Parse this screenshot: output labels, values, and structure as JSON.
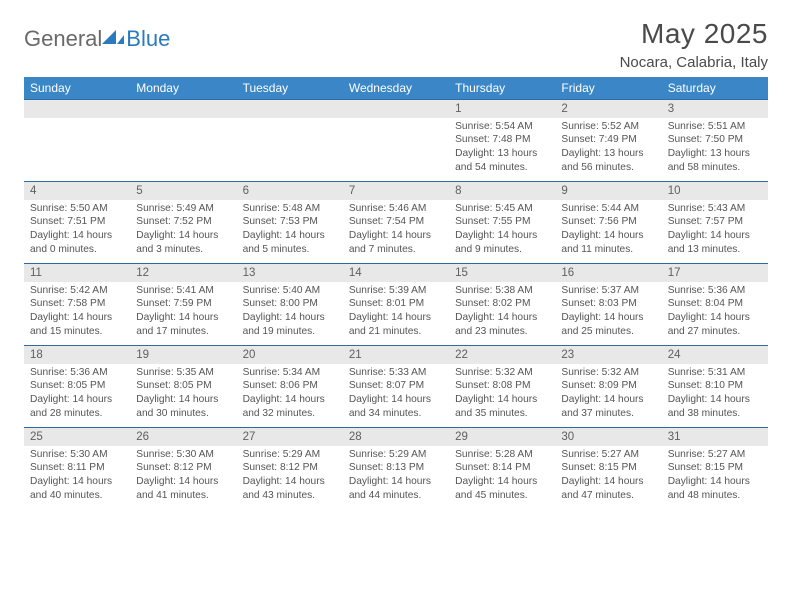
{
  "brand": {
    "part1": "General",
    "part2": "Blue"
  },
  "title": "May 2025",
  "location": "Nocara, Calabria, Italy",
  "colors": {
    "header_bg": "#3b86c7",
    "header_text": "#ffffff",
    "daynum_bg": "#e8e8e8",
    "daynum_border": "#2f6aa3",
    "body_text": "#555555",
    "title_text": "#4a4a4a",
    "logo_gray": "#6a6a6a",
    "logo_blue": "#2a7ac0"
  },
  "weekdays": [
    "Sunday",
    "Monday",
    "Tuesday",
    "Wednesday",
    "Thursday",
    "Friday",
    "Saturday"
  ],
  "weeks": [
    {
      "nums": [
        "",
        "",
        "",
        "",
        "1",
        "2",
        "3"
      ],
      "cells": [
        {},
        {},
        {},
        {},
        {
          "sr": "Sunrise: 5:54 AM",
          "ss": "Sunset: 7:48 PM",
          "d1": "Daylight: 13 hours",
          "d2": "and 54 minutes."
        },
        {
          "sr": "Sunrise: 5:52 AM",
          "ss": "Sunset: 7:49 PM",
          "d1": "Daylight: 13 hours",
          "d2": "and 56 minutes."
        },
        {
          "sr": "Sunrise: 5:51 AM",
          "ss": "Sunset: 7:50 PM",
          "d1": "Daylight: 13 hours",
          "d2": "and 58 minutes."
        }
      ]
    },
    {
      "nums": [
        "4",
        "5",
        "6",
        "7",
        "8",
        "9",
        "10"
      ],
      "cells": [
        {
          "sr": "Sunrise: 5:50 AM",
          "ss": "Sunset: 7:51 PM",
          "d1": "Daylight: 14 hours",
          "d2": "and 0 minutes."
        },
        {
          "sr": "Sunrise: 5:49 AM",
          "ss": "Sunset: 7:52 PM",
          "d1": "Daylight: 14 hours",
          "d2": "and 3 minutes."
        },
        {
          "sr": "Sunrise: 5:48 AM",
          "ss": "Sunset: 7:53 PM",
          "d1": "Daylight: 14 hours",
          "d2": "and 5 minutes."
        },
        {
          "sr": "Sunrise: 5:46 AM",
          "ss": "Sunset: 7:54 PM",
          "d1": "Daylight: 14 hours",
          "d2": "and 7 minutes."
        },
        {
          "sr": "Sunrise: 5:45 AM",
          "ss": "Sunset: 7:55 PM",
          "d1": "Daylight: 14 hours",
          "d2": "and 9 minutes."
        },
        {
          "sr": "Sunrise: 5:44 AM",
          "ss": "Sunset: 7:56 PM",
          "d1": "Daylight: 14 hours",
          "d2": "and 11 minutes."
        },
        {
          "sr": "Sunrise: 5:43 AM",
          "ss": "Sunset: 7:57 PM",
          "d1": "Daylight: 14 hours",
          "d2": "and 13 minutes."
        }
      ]
    },
    {
      "nums": [
        "11",
        "12",
        "13",
        "14",
        "15",
        "16",
        "17"
      ],
      "cells": [
        {
          "sr": "Sunrise: 5:42 AM",
          "ss": "Sunset: 7:58 PM",
          "d1": "Daylight: 14 hours",
          "d2": "and 15 minutes."
        },
        {
          "sr": "Sunrise: 5:41 AM",
          "ss": "Sunset: 7:59 PM",
          "d1": "Daylight: 14 hours",
          "d2": "and 17 minutes."
        },
        {
          "sr": "Sunrise: 5:40 AM",
          "ss": "Sunset: 8:00 PM",
          "d1": "Daylight: 14 hours",
          "d2": "and 19 minutes."
        },
        {
          "sr": "Sunrise: 5:39 AM",
          "ss": "Sunset: 8:01 PM",
          "d1": "Daylight: 14 hours",
          "d2": "and 21 minutes."
        },
        {
          "sr": "Sunrise: 5:38 AM",
          "ss": "Sunset: 8:02 PM",
          "d1": "Daylight: 14 hours",
          "d2": "and 23 minutes."
        },
        {
          "sr": "Sunrise: 5:37 AM",
          "ss": "Sunset: 8:03 PM",
          "d1": "Daylight: 14 hours",
          "d2": "and 25 minutes."
        },
        {
          "sr": "Sunrise: 5:36 AM",
          "ss": "Sunset: 8:04 PM",
          "d1": "Daylight: 14 hours",
          "d2": "and 27 minutes."
        }
      ]
    },
    {
      "nums": [
        "18",
        "19",
        "20",
        "21",
        "22",
        "23",
        "24"
      ],
      "cells": [
        {
          "sr": "Sunrise: 5:36 AM",
          "ss": "Sunset: 8:05 PM",
          "d1": "Daylight: 14 hours",
          "d2": "and 28 minutes."
        },
        {
          "sr": "Sunrise: 5:35 AM",
          "ss": "Sunset: 8:05 PM",
          "d1": "Daylight: 14 hours",
          "d2": "and 30 minutes."
        },
        {
          "sr": "Sunrise: 5:34 AM",
          "ss": "Sunset: 8:06 PM",
          "d1": "Daylight: 14 hours",
          "d2": "and 32 minutes."
        },
        {
          "sr": "Sunrise: 5:33 AM",
          "ss": "Sunset: 8:07 PM",
          "d1": "Daylight: 14 hours",
          "d2": "and 34 minutes."
        },
        {
          "sr": "Sunrise: 5:32 AM",
          "ss": "Sunset: 8:08 PM",
          "d1": "Daylight: 14 hours",
          "d2": "and 35 minutes."
        },
        {
          "sr": "Sunrise: 5:32 AM",
          "ss": "Sunset: 8:09 PM",
          "d1": "Daylight: 14 hours",
          "d2": "and 37 minutes."
        },
        {
          "sr": "Sunrise: 5:31 AM",
          "ss": "Sunset: 8:10 PM",
          "d1": "Daylight: 14 hours",
          "d2": "and 38 minutes."
        }
      ]
    },
    {
      "nums": [
        "25",
        "26",
        "27",
        "28",
        "29",
        "30",
        "31"
      ],
      "cells": [
        {
          "sr": "Sunrise: 5:30 AM",
          "ss": "Sunset: 8:11 PM",
          "d1": "Daylight: 14 hours",
          "d2": "and 40 minutes."
        },
        {
          "sr": "Sunrise: 5:30 AM",
          "ss": "Sunset: 8:12 PM",
          "d1": "Daylight: 14 hours",
          "d2": "and 41 minutes."
        },
        {
          "sr": "Sunrise: 5:29 AM",
          "ss": "Sunset: 8:12 PM",
          "d1": "Daylight: 14 hours",
          "d2": "and 43 minutes."
        },
        {
          "sr": "Sunrise: 5:29 AM",
          "ss": "Sunset: 8:13 PM",
          "d1": "Daylight: 14 hours",
          "d2": "and 44 minutes."
        },
        {
          "sr": "Sunrise: 5:28 AM",
          "ss": "Sunset: 8:14 PM",
          "d1": "Daylight: 14 hours",
          "d2": "and 45 minutes."
        },
        {
          "sr": "Sunrise: 5:27 AM",
          "ss": "Sunset: 8:15 PM",
          "d1": "Daylight: 14 hours",
          "d2": "and 47 minutes."
        },
        {
          "sr": "Sunrise: 5:27 AM",
          "ss": "Sunset: 8:15 PM",
          "d1": "Daylight: 14 hours",
          "d2": "and 48 minutes."
        }
      ]
    }
  ]
}
